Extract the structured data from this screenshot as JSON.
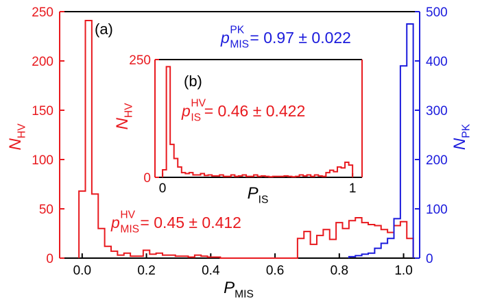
{
  "colors": {
    "red": "#e8191e",
    "blue": "#1a1adc",
    "black": "#000000"
  },
  "chart_data": [
    {
      "panel": "(a)",
      "type": "histogram-step",
      "xlabel": {
        "main": "P",
        "sub": "MIS"
      },
      "ylabel_left": {
        "main": "N",
        "sub": "HV"
      },
      "ylabel_right": {
        "main": "N",
        "sub": "PK"
      },
      "xlim": [
        -0.07,
        1.05
      ],
      "ylim_left": [
        0,
        250
      ],
      "ylim_right": [
        0,
        500
      ],
      "xticks": [
        "0.0",
        "0.2",
        "0.4",
        "0.6",
        "0.8",
        "1.0"
      ],
      "xtick_values": [
        0,
        0.2,
        0.4,
        0.6,
        0.8,
        1.0
      ],
      "yticks_left": [
        "0",
        "50",
        "100",
        "150",
        "200",
        "250"
      ],
      "ytick_left_values": [
        0,
        50,
        100,
        150,
        200,
        250
      ],
      "yticks_right": [
        "0",
        "100",
        "200",
        "300",
        "400",
        "500"
      ],
      "ytick_right_values": [
        0,
        100,
        200,
        300,
        400,
        500
      ],
      "bin_width": 0.02,
      "series": [
        {
          "name": "HV",
          "axis": "left",
          "color": "#e8191e",
          "bin_start": -0.01,
          "values": [
            68,
            241,
            65,
            30,
            12,
            7,
            3,
            5,
            2,
            2,
            8,
            4,
            5,
            3,
            3,
            2,
            2,
            1,
            3,
            2,
            1,
            1,
            0,
            0,
            0,
            0,
            0,
            0,
            0,
            0,
            0,
            0,
            0,
            0,
            20,
            27,
            14,
            23,
            29,
            19,
            36,
            30,
            38,
            41,
            36,
            34,
            33,
            29,
            26,
            33,
            37,
            20
          ]
        },
        {
          "name": "PK",
          "axis": "right",
          "color": "#1a1adc",
          "bin_start": 0.83,
          "values": [
            3,
            5,
            8,
            10,
            20,
            30,
            40,
            80,
            390,
            475
          ]
        }
      ],
      "annotation": {
        "main": "p",
        "sub": "MIS",
        "sup": "HV",
        "text": " = 0.45 ± 0.412",
        "color": "#e8191e"
      },
      "annotation2": {
        "main": "p",
        "sub": "MIS",
        "sup": "PK",
        "text": " = 0.97 ± 0.022",
        "color": "#1a1adc"
      }
    },
    {
      "panel": "(b)",
      "type": "histogram-step",
      "inset": true,
      "xlabel": {
        "main": "P",
        "sub": "IS"
      },
      "ylabel": {
        "main": "N",
        "sub": "HV"
      },
      "xlim": [
        -0.04,
        1.05
      ],
      "ylim": [
        0,
        250
      ],
      "xticks": [
        "0",
        "1"
      ],
      "xtick_values": [
        0,
        1
      ],
      "yticks": [
        "0",
        "250"
      ],
      "ytick_values": [
        0,
        250
      ],
      "bin_width": 0.02,
      "series": [
        {
          "name": "HV",
          "color": "#e8191e",
          "bin_start": 0,
          "values": [
            16,
            235,
            70,
            40,
            22,
            10,
            8,
            10,
            5,
            5,
            8,
            4,
            5,
            3,
            3,
            5,
            2,
            2,
            5,
            2,
            3,
            5,
            2,
            2,
            5,
            2,
            3,
            2,
            1,
            2,
            2,
            2,
            3,
            2,
            1,
            2,
            5,
            3,
            5,
            2,
            5,
            3,
            2,
            10,
            15,
            12,
            22,
            20,
            32,
            26
          ]
        }
      ],
      "annotation": {
        "main": "p",
        "sub": "IS",
        "sup": "HV",
        "text": " = 0.46 ± 0.422",
        "color": "#e8191e"
      }
    }
  ]
}
